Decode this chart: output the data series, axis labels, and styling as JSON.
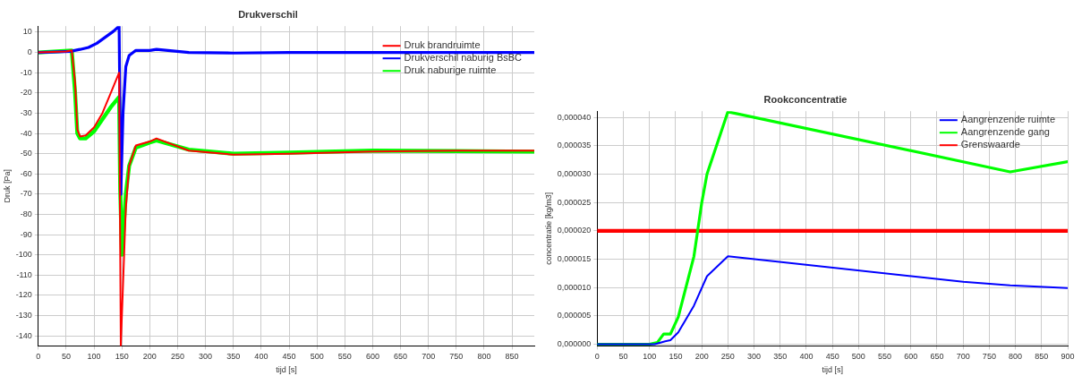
{
  "chart_data": [
    {
      "type": "line",
      "title": "Drukverschil",
      "xlabel": "tijd [s]",
      "ylabel": "Druk [Pa]",
      "xlim": [
        0,
        890
      ],
      "ylim": [
        -145,
        13
      ],
      "xticks": [
        0,
        50,
        100,
        150,
        200,
        250,
        300,
        350,
        400,
        450,
        500,
        550,
        600,
        650,
        700,
        750,
        800,
        850
      ],
      "yticks": [
        -140,
        -130,
        -120,
        -110,
        -100,
        -90,
        -80,
        -70,
        -60,
        -50,
        -40,
        -30,
        -20,
        -10,
        0,
        10
      ],
      "grid": true,
      "legend": "top right",
      "marker": "none",
      "line_style": "solid",
      "series": [
        {
          "name": "Druk brandruimte",
          "color": "#ff0000",
          "x": [
            0,
            50,
            60,
            66,
            70,
            75,
            85,
            100,
            115,
            130,
            145,
            148,
            157,
            163,
            175,
            200,
            212,
            270,
            350,
            450,
            600,
            750,
            890
          ],
          "values": [
            0,
            0.5,
            1,
            -15,
            -38,
            -41.5,
            -41,
            -37,
            -30,
            -20,
            -10,
            -145,
            -77,
            -56,
            -46,
            -44,
            -42.5,
            -48.5,
            -50.5,
            -50,
            -49,
            -48.5,
            -48.5
          ]
        },
        {
          "name": "Drukverschil naburig BsBC",
          "color": "#0000ff",
          "x": [
            0,
            60,
            65,
            75,
            90,
            105,
            120,
            135,
            145,
            148,
            152,
            157,
            163,
            175,
            200,
            212,
            270,
            350,
            450,
            890
          ],
          "values": [
            0,
            0.5,
            1,
            1.5,
            2.5,
            4.5,
            7.5,
            10.5,
            13,
            -70,
            -30,
            -7,
            -1.5,
            1,
            1,
            1.5,
            0,
            -0.3,
            0,
            0
          ]
        },
        {
          "name": "Druk naburige ruimte",
          "color": "#00ff00",
          "x": [
            0,
            60,
            66,
            70,
            75,
            85,
            100,
            115,
            130,
            145,
            147,
            150,
            157,
            163,
            175,
            200,
            212,
            270,
            350,
            450,
            600,
            890
          ],
          "values": [
            0,
            1,
            -20,
            -40,
            -42.5,
            -42.5,
            -39,
            -33,
            -27,
            -22,
            -68,
            -100,
            -70,
            -56,
            -47,
            -44.5,
            -43.5,
            -48,
            -50,
            -49.5,
            -48.5,
            -49
          ]
        }
      ]
    },
    {
      "type": "line",
      "title": "Rookconcentratie",
      "xlabel": "tijd [s]",
      "ylabel": "concentratie [kg/m3]",
      "xlim": [
        0,
        900
      ],
      "ylim": [
        -3e-07,
        4.11e-05
      ],
      "xticks": [
        0,
        50,
        100,
        150,
        200,
        250,
        300,
        350,
        400,
        450,
        500,
        550,
        600,
        650,
        700,
        750,
        800,
        850,
        900
      ],
      "yticks": [
        {
          "value": 0,
          "label": "0,000000"
        },
        {
          "value": 5e-06,
          "label": "0,000005"
        },
        {
          "value": 1e-05,
          "label": "0,000010"
        },
        {
          "value": 1.5e-05,
          "label": "0,000015"
        },
        {
          "value": 2e-05,
          "label": "0,000020"
        },
        {
          "value": 2.5e-05,
          "label": "0,000025"
        },
        {
          "value": 3e-05,
          "label": "0,000030"
        },
        {
          "value": 3.5e-05,
          "label": "0,000035"
        },
        {
          "value": 4e-05,
          "label": "0,000040"
        }
      ],
      "grid": true,
      "legend": "top right",
      "marker": "none",
      "line_style": "solid",
      "series": [
        {
          "name": "Aangrenzende ruimte",
          "color": "#0000ff",
          "x": [
            0,
            110,
            130,
            140,
            155,
            185,
            210,
            250,
            700,
            790,
            900
          ],
          "values": [
            0,
            0,
            5e-07,
            7e-07,
            2.1e-06,
            6.8e-06,
            1.2e-05,
            1.55e-05,
            1.1e-05,
            1.04e-05,
            9.9e-06
          ]
        },
        {
          "name": "Aangrenzende gang",
          "color": "#00ff00",
          "x": [
            0,
            100,
            115,
            127,
            140,
            155,
            185,
            200,
            210,
            250,
            790,
            900
          ],
          "values": [
            0,
            0,
            3e-07,
            1.8e-06,
            1.8e-06,
            4.8e-06,
            1.55e-05,
            2.5e-05,
            3e-05,
            4.1e-05,
            3.04e-05,
            3.22e-05
          ]
        },
        {
          "name": "Grenswaarde",
          "color": "#ff0000",
          "x": [
            0,
            900
          ],
          "values": [
            2e-05,
            2e-05
          ]
        }
      ]
    }
  ]
}
